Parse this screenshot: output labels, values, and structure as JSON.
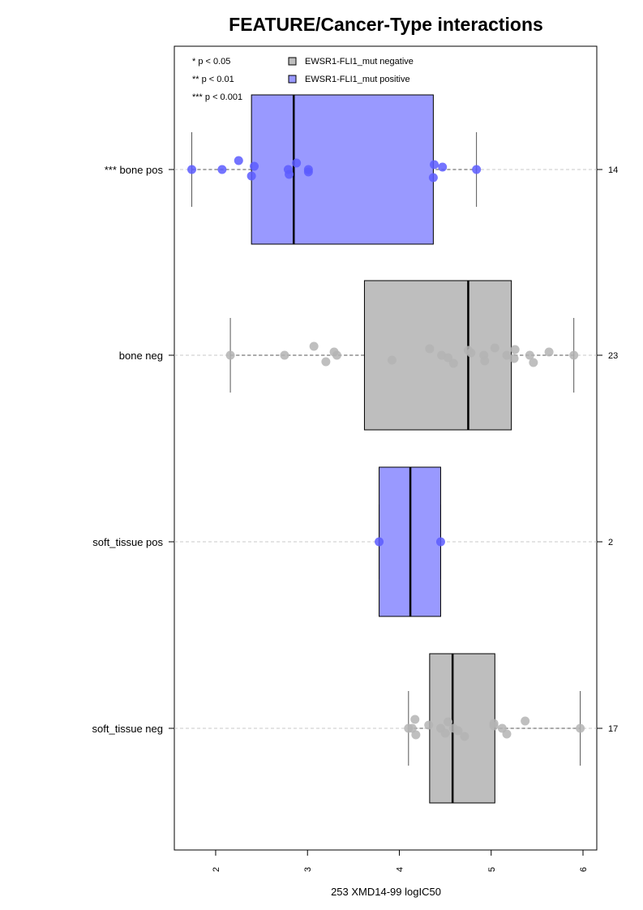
{
  "chart_data": {
    "type": "box",
    "title": "FEATURE/Cancer-Type interactions",
    "xlabel": "253 XMD14-99 logIC50",
    "xlim": [
      1.55,
      6.15
    ],
    "xticks": [
      "2",
      "3",
      "4",
      "5",
      "6"
    ],
    "significance_legend": [
      "* p < 0.05",
      "** p < 0.01",
      "*** p < 0.001"
    ],
    "series_legend": [
      {
        "name": "EWSR1-FLI1_mut negative",
        "color": "#bebebe"
      },
      {
        "name": "EWSR1-FLI1_mut positive",
        "color": "#9999ff"
      }
    ],
    "groups": [
      {
        "label": "*** bone pos",
        "n": "14",
        "status": "positive",
        "box_color": "#9999ff",
        "point_color": "#5c5cff",
        "whisker_low": 1.74,
        "q1": 2.39,
        "median": 2.85,
        "q3": 4.37,
        "whisker_high": 4.84,
        "points": [
          1.74,
          2.07,
          2.25,
          2.39,
          2.42,
          2.79,
          2.8,
          2.88,
          3.01,
          3.01,
          4.37,
          4.38,
          4.47,
          4.84
        ]
      },
      {
        "label": "bone neg",
        "n": "23",
        "status": "negative",
        "box_color": "#bebebe",
        "point_color": "#b4b4b4",
        "whisker_low": 2.16,
        "q1": 3.62,
        "median": 4.75,
        "q3": 5.22,
        "whisker_high": 5.9,
        "points": [
          2.16,
          2.75,
          3.07,
          3.2,
          3.29,
          3.32,
          3.92,
          4.33,
          4.46,
          4.53,
          4.59,
          4.75,
          4.78,
          4.92,
          4.93,
          5.04,
          5.17,
          5.25,
          5.26,
          5.42,
          5.46,
          5.63,
          5.9
        ]
      },
      {
        "label": "soft_tissue pos",
        "n": "2",
        "status": "positive",
        "box_color": "#9999ff",
        "point_color": "#5c5cff",
        "whisker_low": 3.78,
        "q1": 3.78,
        "median": 4.12,
        "q3": 4.45,
        "whisker_high": 4.45,
        "points": [
          3.78,
          4.45
        ]
      },
      {
        "label": "soft_tissue neg",
        "n": "17",
        "status": "negative",
        "box_color": "#bebebe",
        "point_color": "#b4b4b4",
        "whisker_low": 4.1,
        "q1": 4.33,
        "median": 4.58,
        "q3": 5.04,
        "whisker_high": 5.97,
        "points": [
          4.1,
          4.14,
          4.17,
          4.18,
          4.32,
          4.45,
          4.5,
          4.53,
          4.59,
          4.64,
          4.71,
          5.03,
          5.03,
          5.12,
          5.17,
          5.37,
          5.97
        ]
      }
    ]
  }
}
